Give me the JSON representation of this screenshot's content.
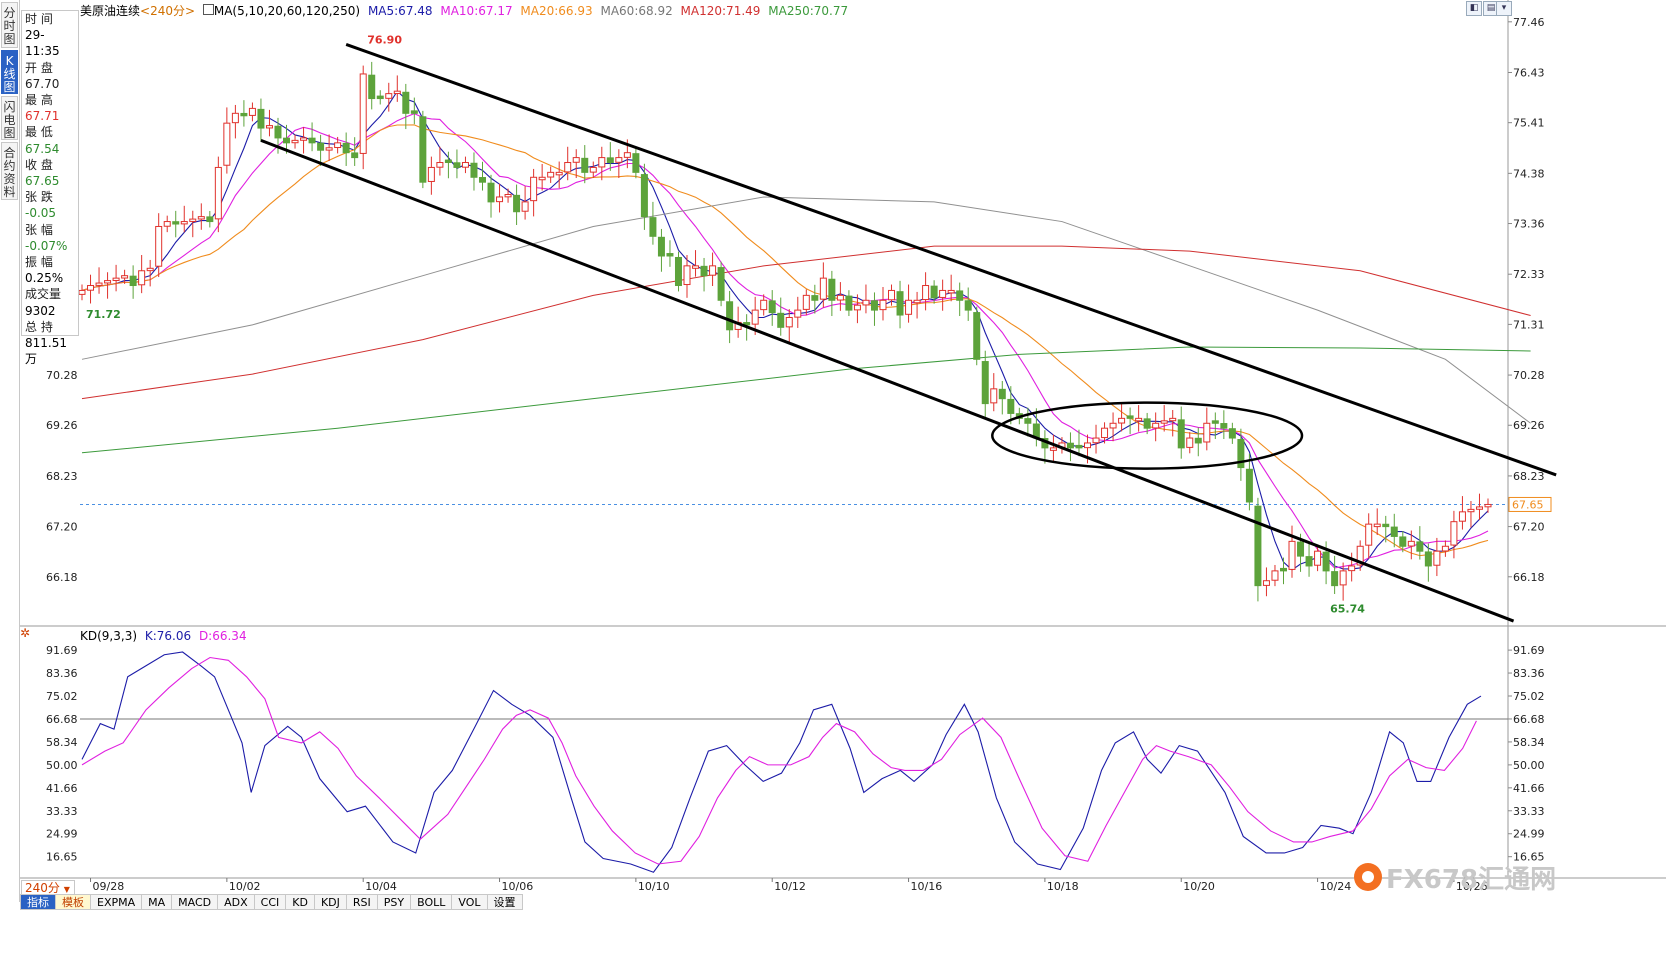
{
  "side_tabs": [
    {
      "label": "分时图",
      "active": false
    },
    {
      "label": "K线图",
      "active": true
    },
    {
      "label": "闪电图",
      "active": false
    },
    {
      "label": "合约资料",
      "active": false
    }
  ],
  "info_panel": {
    "time_label": "时 间",
    "time_value": "29-11:35",
    "open_label": "开 盘",
    "open_value": "67.70",
    "high_label": "最 高",
    "high_value": "67.71",
    "low_label": "最 低",
    "low_value": "67.54",
    "close_label": "收 盘",
    "close_value": "67.65",
    "change_label": "张 跌",
    "change_value": "-0.05",
    "pct_label": "张 幅",
    "pct_value": "-0.07%",
    "amp_label": "振 幅",
    "amp_value": "0.25%",
    "volume_label": "成交量",
    "volume_value": "9302",
    "oi_label": "总 持",
    "oi_value": "811.51万"
  },
  "header": {
    "instrument": "美原油连续",
    "period": "<240分>",
    "ma_label": "MA(5,10,20,60,120,250)",
    "ma5": "MA5:67.48",
    "ma10": "MA10:67.17",
    "ma20": "MA20:66.93",
    "ma60": "MA60:68.92",
    "ma120": "MA120:71.49",
    "ma250": "MA250:70.77"
  },
  "kd_header": {
    "label": "KD(9,3,3)",
    "k": "K:76.06",
    "d": "D:66.34"
  },
  "period_selector": "240分",
  "bottom_tabs": [
    "指标",
    "模板",
    "EXPMA",
    "MA",
    "MACD",
    "ADX",
    "CCI",
    "KD",
    "KDJ",
    "RSI",
    "PSY",
    "BOLL",
    "VOL",
    "设置"
  ],
  "watermark": "FX678汇通网",
  "colors": {
    "up": "#e0312c",
    "down": "#5da33b",
    "ma5": "#1c1ca8",
    "ma10": "#e020e0",
    "ma20": "#f08c1e",
    "ma60": "#909090",
    "ma120": "#d03030",
    "ma250": "#3c9a3c",
    "kline": "#1c1ca8",
    "dline": "#e020e0"
  },
  "chart_data": [
    {
      "type": "candlestick",
      "title": "美原油连续",
      "y_ticks": [
        77.46,
        76.43,
        75.41,
        74.38,
        73.36,
        72.33,
        71.31,
        70.28,
        69.26,
        68.23,
        67.2,
        66.18
      ],
      "ylim": [
        65.2,
        77.7
      ],
      "x_ticks": [
        "09/28",
        "10/02",
        "10/04",
        "10/06",
        "10/10",
        "10/12",
        "10/16",
        "10/18",
        "10/20",
        "10/24",
        "10/26"
      ],
      "x_tick_index": [
        1,
        17,
        33,
        49,
        65,
        81,
        97,
        113,
        129,
        145,
        161
      ],
      "current_price": "67.65",
      "current_value": 67.65,
      "annotations": [
        {
          "text": "76.90",
          "index": 33,
          "value": 76.9,
          "kind": "high"
        },
        {
          "text": "71.72",
          "index": 0,
          "value": 71.72,
          "kind": "low"
        },
        {
          "text": "65.74",
          "index": 146,
          "value": 65.74,
          "kind": "low"
        }
      ],
      "closes": [
        72.0,
        72.1,
        72.15,
        72.2,
        72.25,
        72.3,
        72.1,
        72.4,
        72.45,
        73.3,
        73.4,
        73.35,
        73.4,
        73.45,
        73.5,
        73.4,
        74.5,
        75.4,
        75.6,
        75.55,
        75.7,
        75.3,
        75.35,
        75.1,
        75.0,
        75.05,
        75.1,
        75.0,
        74.85,
        74.9,
        75.0,
        74.8,
        74.7,
        76.4,
        75.9,
        75.9,
        76.0,
        76.05,
        75.6,
        75.6,
        74.2,
        74.5,
        74.6,
        74.6,
        74.5,
        74.6,
        74.3,
        74.2,
        73.8,
        73.9,
        73.95,
        73.6,
        73.8,
        74.3,
        74.3,
        74.4,
        74.4,
        74.6,
        74.7,
        74.4,
        74.5,
        74.7,
        74.6,
        74.7,
        74.8,
        74.4,
        73.5,
        73.1,
        72.7,
        72.7,
        72.1,
        72.5,
        72.5,
        72.3,
        72.5,
        71.8,
        71.2,
        71.35,
        71.3,
        71.6,
        71.8,
        71.55,
        71.25,
        71.45,
        71.6,
        71.9,
        71.8,
        72.25,
        71.8,
        71.9,
        71.6,
        71.7,
        71.8,
        71.6,
        71.8,
        72.0,
        71.5,
        71.8,
        71.8,
        72.1,
        71.85,
        72.0,
        72.0,
        71.8,
        71.6,
        70.6,
        69.7,
        70.0,
        69.8,
        69.5,
        69.4,
        69.3,
        69.0,
        68.8,
        68.8,
        68.9,
        68.8,
        68.8,
        68.9,
        69.0,
        69.2,
        69.3,
        69.4,
        69.4,
        69.4,
        69.2,
        69.3,
        69.35,
        69.4,
        68.8,
        69.0,
        68.9,
        69.3,
        69.3,
        69.2,
        69.0,
        68.4,
        67.7,
        66.0,
        66.1,
        66.3,
        66.3,
        66.9,
        66.6,
        66.4,
        66.7,
        66.3,
        66.0,
        66.3,
        66.4,
        66.8,
        67.25,
        67.25,
        67.2,
        67.0,
        66.8,
        66.9,
        66.7,
        66.4,
        66.7,
        66.8,
        67.3,
        67.5,
        67.55,
        67.6,
        67.65
      ],
      "series": [
        {
          "name": "MA5",
          "value": 67.48
        },
        {
          "name": "MA10",
          "value": 67.17
        },
        {
          "name": "MA20",
          "value": 66.93
        },
        {
          "name": "MA60",
          "value": 68.92
        },
        {
          "name": "MA120",
          "value": 71.49
        },
        {
          "name": "MA250",
          "value": 70.77
        }
      ],
      "channel_upper": [
        {
          "index": 31,
          "value": 77.0
        },
        {
          "index": 173,
          "value": 68.25
        }
      ],
      "channel_lower": [
        {
          "index": 21,
          "value": 75.05
        },
        {
          "index": 168,
          "value": 65.28
        }
      ]
    },
    {
      "type": "line",
      "title": "KD(9,3,3)",
      "y_ticks": [
        91.69,
        83.36,
        75.02,
        66.68,
        58.34,
        50.0,
        41.66,
        33.33,
        24.99,
        16.65
      ],
      "ylim": [
        10,
        95
      ],
      "reference_line": 66.68,
      "series": [
        {
          "name": "K",
          "value": 76.06,
          "points": [
            [
              0,
              52
            ],
            [
              8,
              65
            ],
            [
              14,
              63
            ],
            [
              20,
              82
            ],
            [
              28,
              86
            ],
            [
              36,
              90
            ],
            [
              44,
              91
            ],
            [
              52,
              86
            ],
            [
              58,
              82
            ],
            [
              64,
              70
            ],
            [
              70,
              58
            ],
            [
              74,
              40
            ],
            [
              80,
              57
            ],
            [
              90,
              64
            ],
            [
              96,
              60
            ],
            [
              104,
              45
            ],
            [
              116,
              33
            ],
            [
              124,
              35
            ],
            [
              136,
              22
            ],
            [
              146,
              18
            ],
            [
              154,
              40
            ],
            [
              162,
              48
            ],
            [
              172,
              64
            ],
            [
              180,
              77
            ],
            [
              188,
              72
            ],
            [
              196,
              68
            ],
            [
              206,
              60
            ],
            [
              214,
              38
            ],
            [
              220,
              22
            ],
            [
              228,
              16
            ],
            [
              240,
              14
            ],
            [
              250,
              11
            ],
            [
              258,
              20
            ],
            [
              266,
              38
            ],
            [
              274,
              55
            ],
            [
              282,
              57
            ],
            [
              290,
              50
            ],
            [
              298,
              44
            ],
            [
              306,
              47
            ],
            [
              314,
              58
            ],
            [
              320,
              70
            ],
            [
              328,
              72
            ],
            [
              336,
              56
            ],
            [
              342,
              40
            ],
            [
              350,
              45
            ],
            [
              358,
              48
            ],
            [
              364,
              44
            ],
            [
              372,
              50
            ],
            [
              378,
              61
            ],
            [
              386,
              72
            ],
            [
              392,
              62
            ],
            [
              400,
              38
            ],
            [
              408,
              22
            ],
            [
              418,
              14
            ],
            [
              428,
              12
            ],
            [
              438,
              27
            ],
            [
              446,
              48
            ],
            [
              452,
              58
            ],
            [
              460,
              62
            ],
            [
              466,
              52
            ],
            [
              472,
              47
            ],
            [
              480,
              57
            ],
            [
              488,
              55
            ],
            [
              500,
              40
            ],
            [
              508,
              24
            ],
            [
              518,
              18
            ],
            [
              526,
              18
            ],
            [
              534,
              20
            ],
            [
              542,
              28
            ],
            [
              550,
              27
            ],
            [
              556,
              25
            ],
            [
              564,
              40
            ],
            [
              572,
              62
            ],
            [
              578,
              58
            ],
            [
              584,
              44
            ],
            [
              590,
              44
            ],
            [
              598,
              60
            ],
            [
              606,
              72
            ],
            [
              612,
              75
            ]
          ]
        },
        {
          "name": "D",
          "value": 66.34,
          "points": [
            [
              0,
              50
            ],
            [
              10,
              55
            ],
            [
              18,
              58
            ],
            [
              28,
              70
            ],
            [
              38,
              78
            ],
            [
              48,
              85
            ],
            [
              56,
              89
            ],
            [
              64,
              88
            ],
            [
              72,
              82
            ],
            [
              80,
              74
            ],
            [
              86,
              60
            ],
            [
              96,
              58
            ],
            [
              104,
              62
            ],
            [
              112,
              56
            ],
            [
              120,
              46
            ],
            [
              130,
              38
            ],
            [
              142,
              28
            ],
            [
              148,
              23
            ],
            [
              160,
              32
            ],
            [
              168,
              42
            ],
            [
              176,
              52
            ],
            [
              184,
              63
            ],
            [
              190,
              68
            ],
            [
              196,
              70
            ],
            [
              204,
              67
            ],
            [
              210,
              58
            ],
            [
              216,
              46
            ],
            [
              224,
              35
            ],
            [
              232,
              26
            ],
            [
              242,
              18
            ],
            [
              252,
              14
            ],
            [
              262,
              15
            ],
            [
              270,
              24
            ],
            [
              278,
              38
            ],
            [
              286,
              48
            ],
            [
              292,
              53
            ],
            [
              300,
              50
            ],
            [
              310,
              50
            ],
            [
              318,
              53
            ],
            [
              324,
              60
            ],
            [
              330,
              65
            ],
            [
              338,
              62
            ],
            [
              346,
              54
            ],
            [
              354,
              49
            ],
            [
              360,
              48
            ],
            [
              368,
              48
            ],
            [
              376,
              52
            ],
            [
              384,
              61
            ],
            [
              394,
              67
            ],
            [
              402,
              60
            ],
            [
              410,
              45
            ],
            [
              420,
              27
            ],
            [
              430,
              17
            ],
            [
              440,
              15
            ],
            [
              448,
              28
            ],
            [
              456,
              40
            ],
            [
              464,
              52
            ],
            [
              470,
              57
            ],
            [
              476,
              55
            ],
            [
              484,
              53
            ],
            [
              494,
              50
            ],
            [
              502,
              42
            ],
            [
              510,
              33
            ],
            [
              520,
              26
            ],
            [
              530,
              22
            ],
            [
              538,
              22
            ],
            [
              546,
              24
            ],
            [
              556,
              26
            ],
            [
              564,
              34
            ],
            [
              572,
              46
            ],
            [
              580,
              52
            ],
            [
              588,
              49
            ],
            [
              596,
              48
            ],
            [
              604,
              56
            ],
            [
              610,
              66
            ]
          ]
        }
      ]
    }
  ]
}
